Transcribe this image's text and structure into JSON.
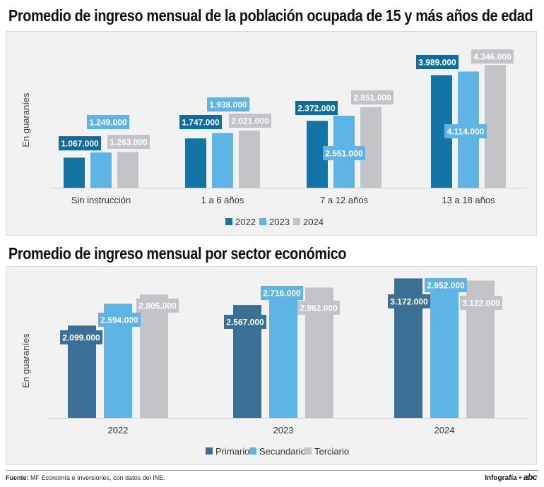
{
  "footer": {
    "source_label": "Fuente:",
    "source_text": "MF Economía e Inversiones, con datos del INE.",
    "credit": "Infografía •",
    "credit_logo": "abc"
  },
  "colors": {
    "c2022": "#1275a6",
    "c2023": "#5db4e5",
    "c2024": "#c3c3c8",
    "primario": "#3a6f96",
    "secundario": "#5db4e5",
    "terciario": "#c3c3c8",
    "label_dark": "#0e6d9c",
    "label_light": "#5db4e5",
    "label_gray": "#c3c3c8"
  },
  "chart_data": [
    {
      "type": "bar",
      "title": "Promedio de ingreso mensual de la población ocupada de 15 y más años de edad",
      "ylabel": "En guaraníes",
      "ylim": [
        0,
        4700000
      ],
      "categories": [
        "Sin instrucción",
        "1 a 6 años",
        "7 a 12 años",
        "13 a 18 años"
      ],
      "series": [
        {
          "name": "2022",
          "values": [
            1067000,
            1747000,
            2372000,
            3989000
          ],
          "labels": [
            "1.067.000",
            "1.747.000",
            "2.372.000",
            "3.989.000"
          ]
        },
        {
          "name": "2023",
          "values": [
            1249000,
            1938000,
            2551000,
            4114000
          ],
          "labels": [
            "1.249.000",
            "1.938.000",
            "2.551.000",
            "4.114.000"
          ]
        },
        {
          "name": "2024",
          "values": [
            1263000,
            2021000,
            2851000,
            4346000
          ],
          "labels": [
            "1.263.000",
            "2.021.000",
            "2.851.000",
            "4.346.000"
          ]
        }
      ],
      "legend_position": "bottom-center",
      "grid": false
    },
    {
      "type": "bar",
      "title": "Promedio de ingreso mensual por sector económico",
      "ylabel": "En guaraníes",
      "ylim": [
        0,
        3500000
      ],
      "categories": [
        "2022",
        "2023",
        "2024"
      ],
      "series": [
        {
          "name": "Primario",
          "values": [
            2099000,
            2567000,
            3172000
          ],
          "labels": [
            "2.099.000",
            "2.567.000",
            "3.172.000"
          ]
        },
        {
          "name": "Secundario",
          "values": [
            2594000,
            2716000,
            2952000
          ],
          "labels": [
            "2.594.000",
            "2.716.000",
            "2.952.000"
          ]
        },
        {
          "name": "Terciario",
          "values": [
            2805000,
            2962000,
            3122000
          ],
          "labels": [
            "2.805.000",
            "2.962.000",
            "3.122.000"
          ]
        }
      ],
      "legend_position": "bottom-center",
      "grid": false
    }
  ]
}
